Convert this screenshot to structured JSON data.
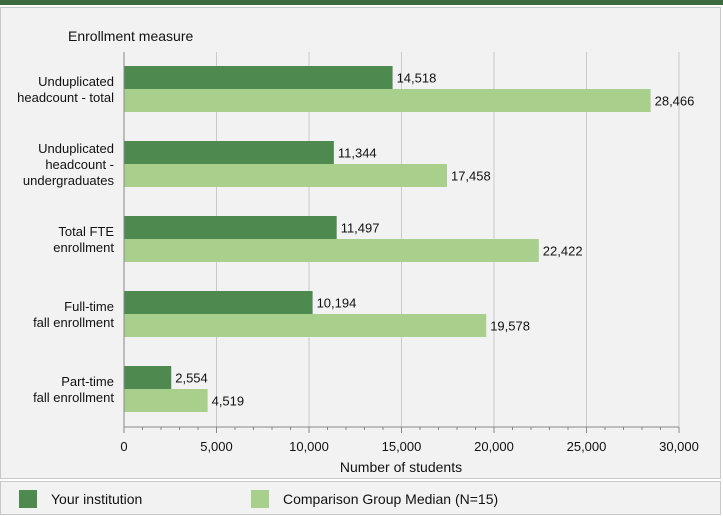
{
  "chart_data": {
    "type": "bar",
    "orientation": "horizontal",
    "categories": [
      [
        "Unduplicated",
        "headcount - total"
      ],
      [
        "Unduplicated",
        "headcount -",
        "undergraduates"
      ],
      [
        "Total FTE",
        "enrollment"
      ],
      [
        "Full-time",
        "fall enrollment"
      ],
      [
        "Part-time",
        "fall enrollment"
      ]
    ],
    "series": [
      {
        "name": "Your institution",
        "color": "#4e8a4f",
        "values": [
          14518,
          11344,
          11497,
          10194,
          2554
        ],
        "labels": [
          "14,518",
          "11,344",
          "11,497",
          "10,194",
          "2,554"
        ]
      },
      {
        "name": "Comparison Group Median (N=15)",
        "color": "#a8cf8c",
        "values": [
          28466,
          17458,
          22422,
          19578,
          4519
        ],
        "labels": [
          "28,466",
          "17,458",
          "22,422",
          "19,578",
          "4,519"
        ]
      }
    ],
    "category_axis_title": "Enrollment measure",
    "xlabel": "Number of students",
    "xlim": [
      0,
      30000
    ],
    "xticks": [
      0,
      5000,
      10000,
      15000,
      20000,
      25000,
      30000
    ],
    "xtick_labels": [
      "0",
      "5,000",
      "10,000",
      "15,000",
      "20,000",
      "25,000",
      "30,000"
    ],
    "grid": true,
    "legend_position": "bottom"
  }
}
